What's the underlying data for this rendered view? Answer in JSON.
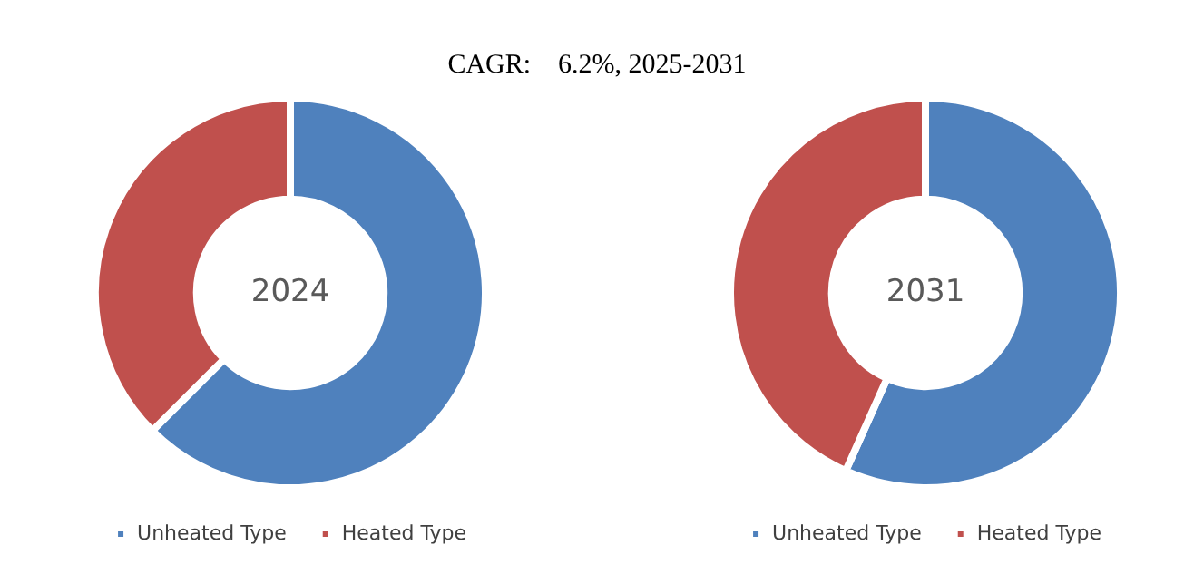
{
  "chart_data": [
    {
      "type": "donut",
      "title": "CAGR:    6.2%, 2025-2031",
      "categories": [
        "Unheated Type",
        "Heated Type"
      ],
      "values": [
        62.5,
        37.5
      ],
      "colors": [
        "#4f81bd",
        "#c0504d"
      ],
      "legend": "bottom",
      "annotations": [
        "2024"
      ]
    },
    {
      "type": "donut",
      "categories": [
        "Unheated Type",
        "Heated Type"
      ],
      "values": [
        56.7,
        43.3
      ],
      "colors": [
        "#4f81bd",
        "#c0504d"
      ],
      "legend": "bottom",
      "annotations": [
        "2031"
      ]
    }
  ]
}
